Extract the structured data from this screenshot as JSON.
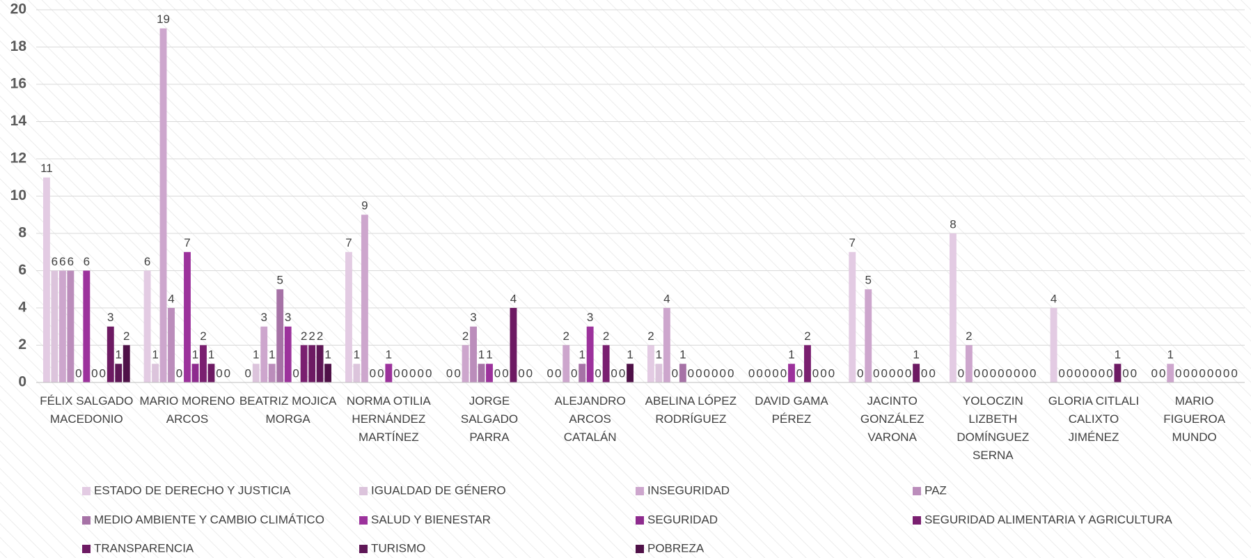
{
  "chart_data": {
    "type": "bar",
    "categories": [
      "FÉLIX SALGADO MACEDONIO",
      "MARIO MORENO ARCOS",
      "BEATRIZ MOJICA MORGA",
      "NORMA OTILIA HERNÁNDEZ MARTÍNEZ",
      "JORGE SALGADO PARRA",
      "ALEJANDRO ARCOS CATALÁN",
      "ABELINA LÓPEZ RODRÍGUEZ",
      "DAVID GAMA PÉREZ",
      "JACINTO GONZÁLEZ VARONA",
      "YOLOCZIN LIZBETH DOMÍNGUEZ SERNA",
      "GLORIA CITLALI CALIXTO JIMÉNEZ",
      "MARIO FIGUEROA MUNDO"
    ],
    "series": [
      {
        "name": "ESTADO DE DERECHO Y JUSTICIA",
        "color": "#e3cbe3",
        "values": [
          11,
          6,
          0,
          7,
          0,
          0,
          2,
          0,
          7,
          8,
          4,
          0
        ]
      },
      {
        "name": "IGUALDAD DE GÉNERO",
        "color": "#dcc4dc",
        "values": [
          6,
          1,
          1,
          1,
          0,
          0,
          1,
          0,
          0,
          0,
          0,
          0
        ]
      },
      {
        "name": "INSEGURIDAD",
        "color": "#cda6cd",
        "values": [
          6,
          19,
          3,
          9,
          2,
          2,
          4,
          0,
          5,
          2,
          0,
          1
        ]
      },
      {
        "name": "PAZ",
        "color": "#bb8dbb",
        "values": [
          6,
          4,
          1,
          0,
          3,
          0,
          0,
          0,
          0,
          0,
          0,
          0
        ]
      },
      {
        "name": "MEDIO AMBIENTE Y CAMBIO CLIMÁTICO",
        "color": "#a672a6",
        "values": [
          0,
          0,
          5,
          0,
          1,
          1,
          1,
          0,
          0,
          0,
          0,
          0
        ]
      },
      {
        "name": "SALUD Y BIENESTAR",
        "color": "#9c329c",
        "values": [
          6,
          7,
          3,
          1,
          1,
          3,
          0,
          1,
          0,
          0,
          0,
          0
        ]
      },
      {
        "name": "SEGURIDAD",
        "color": "#8e2b8e",
        "values": [
          0,
          1,
          0,
          0,
          0,
          0,
          0,
          0,
          0,
          0,
          0,
          0
        ]
      },
      {
        "name": "SEGURIDAD ALIMENTARIA Y AGRICULTURA",
        "color": "#7a1f70",
        "values": [
          0,
          2,
          2,
          0,
          0,
          2,
          0,
          2,
          0,
          0,
          0,
          0
        ]
      },
      {
        "name": "TRANSPARENCIA",
        "color": "#6d1a63",
        "values": [
          3,
          1,
          2,
          0,
          4,
          0,
          0,
          0,
          1,
          0,
          1,
          0
        ]
      },
      {
        "name": "TURISMO",
        "color": "#5e1656",
        "values": [
          1,
          0,
          2,
          0,
          0,
          0,
          0,
          0,
          0,
          0,
          0,
          0
        ]
      },
      {
        "name": "POBREZA",
        "color": "#4f1148",
        "values": [
          2,
          0,
          1,
          0,
          0,
          1,
          0,
          0,
          0,
          0,
          0,
          0
        ]
      }
    ],
    "ylim": [
      0,
      20
    ],
    "yticks": [
      0,
      2,
      4,
      6,
      8,
      10,
      12,
      14,
      16,
      18,
      20
    ],
    "grid": true,
    "legend": "bottom"
  }
}
